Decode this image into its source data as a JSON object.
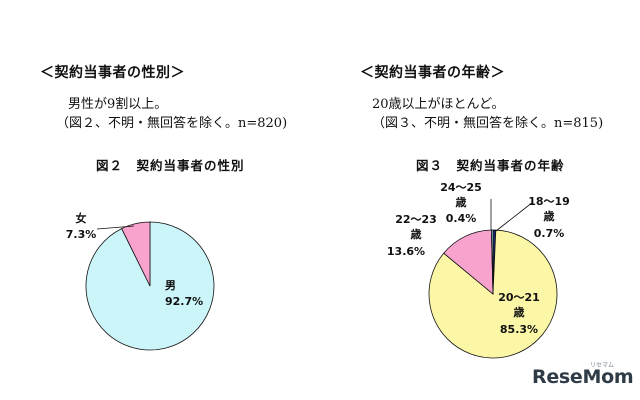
{
  "left": {
    "heading": "＜契約当事者の性別＞",
    "summary": "男性が9割以上。",
    "note": "（図２、不明・無回答を除く。n=820)",
    "figure_title": "図２　契約当事者の性別"
  },
  "right": {
    "heading": "＜契約当事者の年齢＞",
    "summary": "20歳以上がほとんど。",
    "note": "（図３、不明・無回答を除く。n=815)",
    "figure_title": "図３　契約当事者の年齢"
  },
  "chart_data": [
    {
      "type": "pie",
      "title": "図２　契約当事者の性別",
      "slices": [
        {
          "label": "男",
          "value": 92.7,
          "value_text": "92.7%",
          "color": "#ccf5fa"
        },
        {
          "label": "女",
          "value": 7.3,
          "value_text": "7.3%",
          "color": "#f7a3cd"
        }
      ]
    },
    {
      "type": "pie",
      "title": "図３　契約当事者の年齢",
      "slices": [
        {
          "label": "18～19\n歳",
          "value": 0.7,
          "value_text": "0.7%",
          "color": "#1b2a6b"
        },
        {
          "label": "20～21\n歳",
          "value": 85.3,
          "value_text": "85.3%",
          "color": "#fbf7a6"
        },
        {
          "label": "22～23\n歳",
          "value": 13.6,
          "value_text": "13.6%",
          "color": "#f7a3cd"
        },
        {
          "label": "24～25\n歳",
          "value": 0.4,
          "value_text": "0.4%",
          "color": "#a8e3ec"
        }
      ]
    }
  ],
  "logo": {
    "text": "ReseMom",
    "sub": "リセマム"
  }
}
